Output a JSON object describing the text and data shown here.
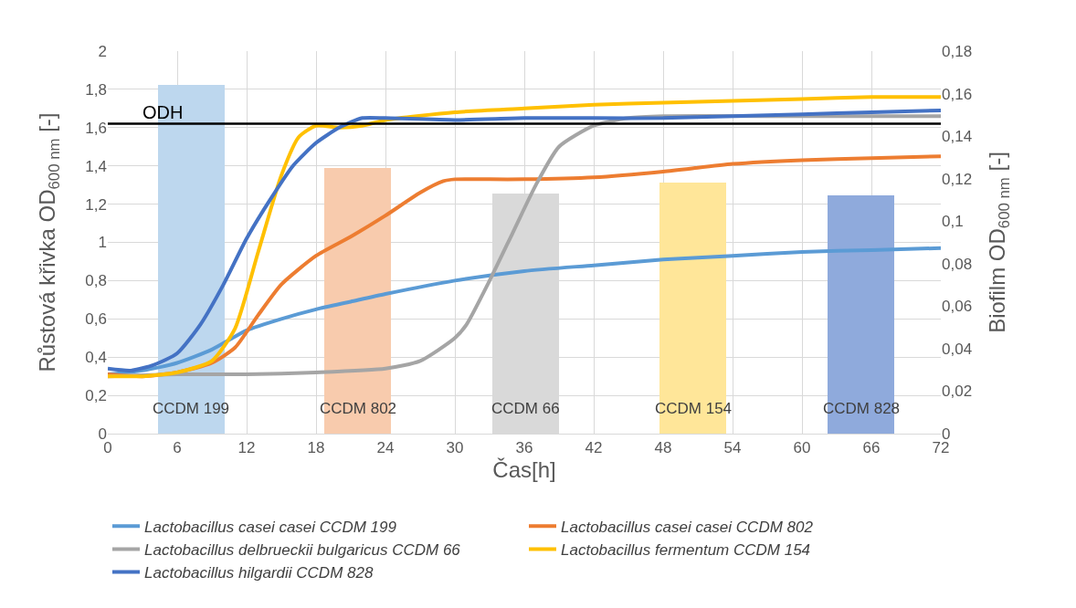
{
  "chart_data": {
    "type": "line",
    "xlabel": "Čas[h]",
    "ylabel": "Růstová křivka OD$_{600 nm}$ [-]",
    "y2label": "Biofilm OD$_{600 nm}$ [-]",
    "xlim": [
      0,
      72
    ],
    "xticks": [
      0,
      6,
      12,
      18,
      24,
      30,
      36,
      42,
      48,
      54,
      60,
      66,
      72
    ],
    "ylim": [
      0,
      2
    ],
    "yticks": [
      0,
      {
        "value": 0.2,
        "label": "0,2"
      },
      {
        "value": 0.4,
        "label": "0,4"
      },
      {
        "value": 0.6,
        "label": "0,6"
      },
      {
        "value": 0.8,
        "label": "0,8"
      },
      1,
      {
        "value": 1.2,
        "label": "1,2"
      },
      {
        "value": 1.4,
        "label": "1,4"
      },
      {
        "value": 1.6,
        "label": "1,6"
      },
      {
        "value": 1.8,
        "label": "1,8"
      },
      2
    ],
    "y2lim": [
      0,
      0.18
    ],
    "y2ticks": [
      0,
      {
        "value": 0.02,
        "label": "0,02"
      },
      {
        "value": 0.04,
        "label": "0,04"
      },
      {
        "value": 0.06,
        "label": "0,06"
      },
      {
        "value": 0.08,
        "label": "0,08"
      },
      {
        "value": 0.1,
        "label": "0,1"
      },
      {
        "value": 0.12,
        "label": "0,12"
      },
      {
        "value": 0.14,
        "label": "0,14"
      },
      {
        "value": 0.16,
        "label": "0,16"
      },
      {
        "value": 0.18,
        "label": "0,18"
      }
    ],
    "grid": true,
    "legend": "bottom",
    "marker": "none",
    "line_style": "solid",
    "ref_lines": [
      {
        "axis": "y",
        "value": 1.62,
        "label": "ODH",
        "color": "#000000"
      }
    ],
    "annotations": [
      "CCDM 199",
      "CCDM 802",
      "CCDM 66",
      "CCDM 154",
      "CCDM 828"
    ],
    "series": [
      {
        "type": "bar",
        "axis": "y2",
        "x": [
          7.2,
          21.6,
          36.1,
          50.6,
          65.1
        ],
        "values": [
          0.164,
          0.125,
          0.113,
          0.118,
          0.112
        ],
        "colors": [
          "#bdd7ee",
          "#f8cbad",
          "#d9d9d9",
          "#ffe699",
          "#8faadc"
        ]
      },
      {
        "name": "Lactobacillus casei casei CCDM 199",
        "color": "#5b9bd5",
        "x": [
          0,
          3,
          6,
          9,
          12,
          15,
          18,
          21,
          24,
          30,
          36,
          42,
          48,
          54,
          60,
          66,
          72
        ],
        "values": [
          0.31,
          0.33,
          0.37,
          0.44,
          0.54,
          0.6,
          0.65,
          0.69,
          0.73,
          0.8,
          0.85,
          0.88,
          0.91,
          0.93,
          0.95,
          0.96,
          0.97
        ]
      },
      {
        "name": "Lactobacillus casei casei CCDM 802",
        "color": "#ed7d31",
        "x": [
          0,
          3,
          6,
          9,
          11,
          13,
          15,
          18,
          21,
          24,
          27,
          29,
          30,
          33,
          36,
          42,
          48,
          54,
          60,
          66,
          72
        ],
        "values": [
          0.31,
          0.3,
          0.32,
          0.37,
          0.45,
          0.62,
          0.78,
          0.93,
          1.03,
          1.14,
          1.26,
          1.32,
          1.33,
          1.33,
          1.33,
          1.34,
          1.37,
          1.41,
          1.43,
          1.44,
          1.45
        ]
      },
      {
        "name": "Lactobacillus delbrueckii bulgaricus CCDM 66",
        "color": "#a5a5a5",
        "x": [
          0,
          6,
          12,
          18,
          24,
          27,
          30,
          31,
          33,
          35,
          37,
          39,
          42,
          45,
          48,
          60,
          72
        ],
        "values": [
          0.3,
          0.31,
          0.31,
          0.32,
          0.34,
          0.38,
          0.5,
          0.57,
          0.8,
          1.05,
          1.3,
          1.5,
          1.61,
          1.65,
          1.66,
          1.66,
          1.66
        ]
      },
      {
        "name": "Lactobacillus fermentum CCDM 154",
        "color": "#ffc000",
        "x": [
          0,
          3,
          6,
          9,
          11,
          13,
          15,
          16.5,
          18,
          20,
          22,
          24,
          30,
          36,
          42,
          48,
          54,
          60,
          66,
          72
        ],
        "values": [
          0.3,
          0.3,
          0.32,
          0.38,
          0.55,
          0.95,
          1.35,
          1.55,
          1.61,
          1.6,
          1.61,
          1.64,
          1.68,
          1.7,
          1.72,
          1.73,
          1.74,
          1.75,
          1.76,
          1.76
        ]
      },
      {
        "name": "Lactobacillus hilgardii CCDM 828",
        "color": "#4472c4",
        "x": [
          0,
          2,
          4,
          6,
          8,
          10,
          12,
          14,
          16,
          18,
          20,
          22,
          24,
          30,
          36,
          42,
          48,
          54,
          60,
          66,
          72
        ],
        "values": [
          0.34,
          0.33,
          0.36,
          0.42,
          0.57,
          0.78,
          1.02,
          1.22,
          1.4,
          1.52,
          1.6,
          1.65,
          1.65,
          1.64,
          1.65,
          1.65,
          1.65,
          1.66,
          1.67,
          1.68,
          1.69
        ]
      }
    ]
  }
}
